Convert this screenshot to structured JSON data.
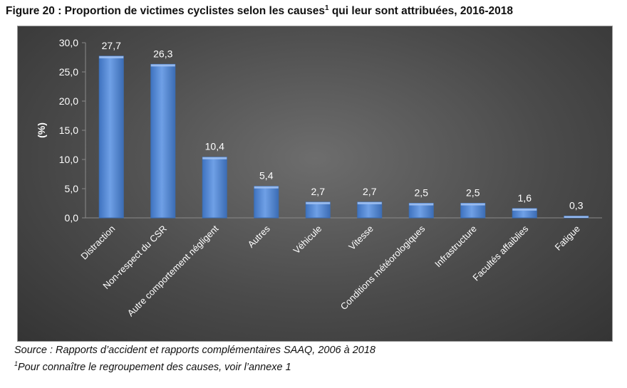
{
  "figure": {
    "title": "Figure 20 : Proportion de victimes cyclistes selon les causes",
    "title_sup": "1",
    "title_tail": " qui leur sont attribuées, 2016-2018"
  },
  "footer": {
    "source": "Source : Rapports d’accident et rapports complémentaires SAAQ, 2006 à 2018",
    "note_sup": "1",
    "note": "Pour connaître le regroupement des causes, voir l’annexe 1"
  },
  "colors": {
    "bar_fill": "#5b8fd9",
    "bar_edge": "#3c6eb5",
    "text": "#ffffff",
    "axis": "#8a8a8a"
  },
  "chart_data": {
    "type": "bar",
    "title": "",
    "xlabel": "",
    "ylabel": "(%)",
    "ylim": [
      0,
      30
    ],
    "yticks": [
      "0,0",
      "5,0",
      "10,0",
      "15,0",
      "20,0",
      "25,0",
      "30,0"
    ],
    "grid": false,
    "legend": "none",
    "categories": [
      "Distraction",
      "Non-respect du CSR",
      "Autre comportement négligent",
      "Autres",
      "Véhicule",
      "Vitesse",
      "Conditions météorologiques",
      "Infrastructure",
      "Facultés affaiblies",
      "Fatigue"
    ],
    "values": [
      27.7,
      26.3,
      10.4,
      5.4,
      2.7,
      2.7,
      2.5,
      2.5,
      1.6,
      0.3
    ],
    "data_labels": [
      "27,7",
      "26,3",
      "10,4",
      "5,4",
      "2,7",
      "2,7",
      "2,5",
      "2,5",
      "1,6",
      "0,3"
    ]
  }
}
